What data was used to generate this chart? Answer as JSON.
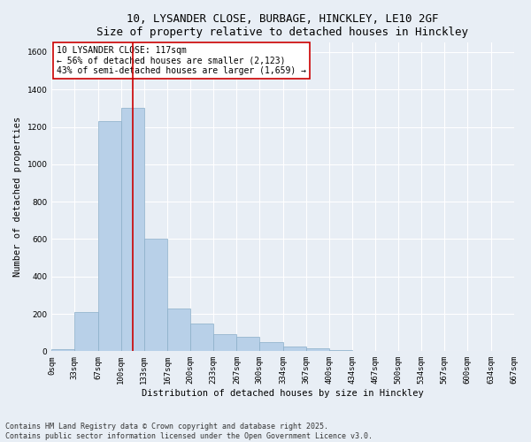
{
  "title_line1": "10, LYSANDER CLOSE, BURBAGE, HINCKLEY, LE10 2GF",
  "title_line2": "Size of property relative to detached houses in Hinckley",
  "xlabel": "Distribution of detached houses by size in Hinckley",
  "ylabel": "Number of detached properties",
  "bar_color": "#b8d0e8",
  "bar_edge_color": "#8aaec8",
  "background_color": "#e8eef5",
  "grid_color": "#ffffff",
  "bin_edges": [
    0,
    33,
    67,
    100,
    133,
    167,
    200,
    233,
    267,
    300,
    334,
    367,
    400,
    434,
    467,
    500,
    534,
    567,
    600,
    634,
    667
  ],
  "bar_values": [
    10,
    210,
    1230,
    1300,
    600,
    230,
    150,
    90,
    75,
    50,
    25,
    15,
    5,
    0,
    0,
    0,
    0,
    0,
    0,
    0
  ],
  "tick_labels": [
    "0sqm",
    "33sqm",
    "67sqm",
    "100sqm",
    "133sqm",
    "167sqm",
    "200sqm",
    "233sqm",
    "267sqm",
    "300sqm",
    "334sqm",
    "367sqm",
    "400sqm",
    "434sqm",
    "467sqm",
    "500sqm",
    "534sqm",
    "567sqm",
    "600sqm",
    "634sqm",
    "667sqm"
  ],
  "ylim": [
    0,
    1650
  ],
  "yticks": [
    0,
    200,
    400,
    600,
    800,
    1000,
    1200,
    1400,
    1600
  ],
  "property_line_x": 117,
  "property_line_color": "#cc0000",
  "annotation_text": "10 LYSANDER CLOSE: 117sqm\n← 56% of detached houses are smaller (2,123)\n43% of semi-detached houses are larger (1,659) →",
  "annotation_box_color": "#ffffff",
  "annotation_box_edge": "#cc0000",
  "footer_line1": "Contains HM Land Registry data © Crown copyright and database right 2025.",
  "footer_line2": "Contains public sector information licensed under the Open Government Licence v3.0.",
  "title_fontsize": 9,
  "axis_label_fontsize": 7.5,
  "tick_fontsize": 6.5,
  "annotation_fontsize": 7,
  "footer_fontsize": 6
}
